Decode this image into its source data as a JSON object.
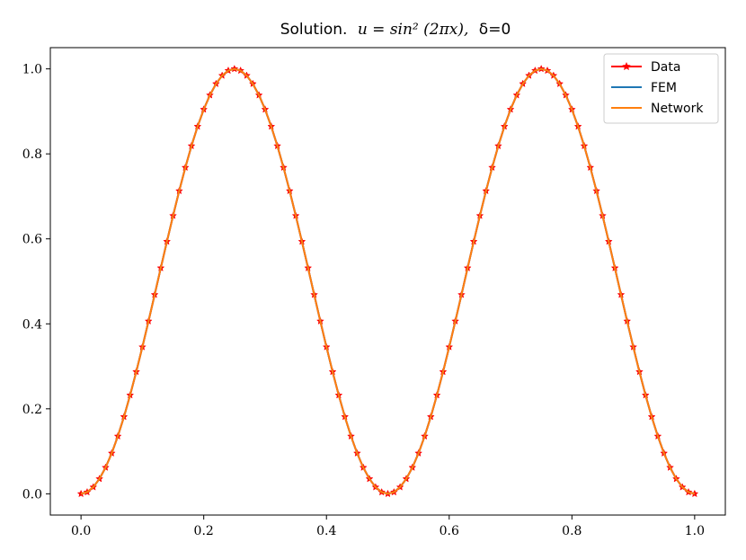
{
  "chart_data": {
    "type": "line",
    "title_prefix": "Solution.",
    "title_math": "u = sin² (2πx),",
    "title_delta": "δ=0",
    "xlabel": "",
    "ylabel": "",
    "xlim": [
      -0.05,
      1.05
    ],
    "ylim": [
      -0.05,
      1.05
    ],
    "x_ticks": [
      "0.0",
      "0.2",
      "0.4",
      "0.6",
      "0.8",
      "1.0"
    ],
    "y_ticks": [
      "0.0",
      "0.2",
      "0.4",
      "0.6",
      "0.8",
      "1.0"
    ],
    "grid": false,
    "legend_position": "top-right",
    "function": "sin^2(2*pi*x)",
    "x_range": [
      0,
      1
    ],
    "n_points": 101,
    "series": [
      {
        "name": "Data",
        "color": "#ff0000",
        "marker": "star",
        "style": "line+markers"
      },
      {
        "name": "FEM",
        "color": "#1f77b4",
        "style": "line"
      },
      {
        "name": "Network",
        "color": "#ff7f0e",
        "style": "line"
      }
    ]
  }
}
